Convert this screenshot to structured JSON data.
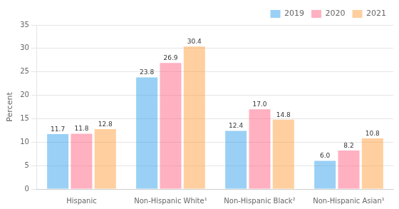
{
  "chart_data": {
    "type": "bar",
    "categories": [
      "Hispanic",
      "Non-Hispanic White¹",
      "Non-Hispanic Black²",
      "Non-Hispanic Asian¹"
    ],
    "series": [
      {
        "name": "2019",
        "values": [
          11.7,
          23.8,
          12.4,
          6.0
        ],
        "value_labels": [
          "11.7",
          "23.8",
          "12.4",
          "6.0"
        ]
      },
      {
        "name": "2020",
        "values": [
          11.8,
          26.9,
          17.0,
          8.2
        ],
        "value_labels": [
          "11.8",
          "26.9",
          "17.0",
          "8.2"
        ]
      },
      {
        "name": "2021",
        "values": [
          12.8,
          30.4,
          14.8,
          10.8
        ],
        "value_labels": [
          "12.8",
          "30.4",
          "14.8",
          "10.8"
        ]
      }
    ],
    "ylabel": "Percent",
    "ylim": [
      0,
      35
    ],
    "yticks": [
      0,
      5,
      10,
      15,
      20,
      25,
      30,
      35
    ],
    "grid": true,
    "legend": "upper right",
    "data_labels": true
  }
}
